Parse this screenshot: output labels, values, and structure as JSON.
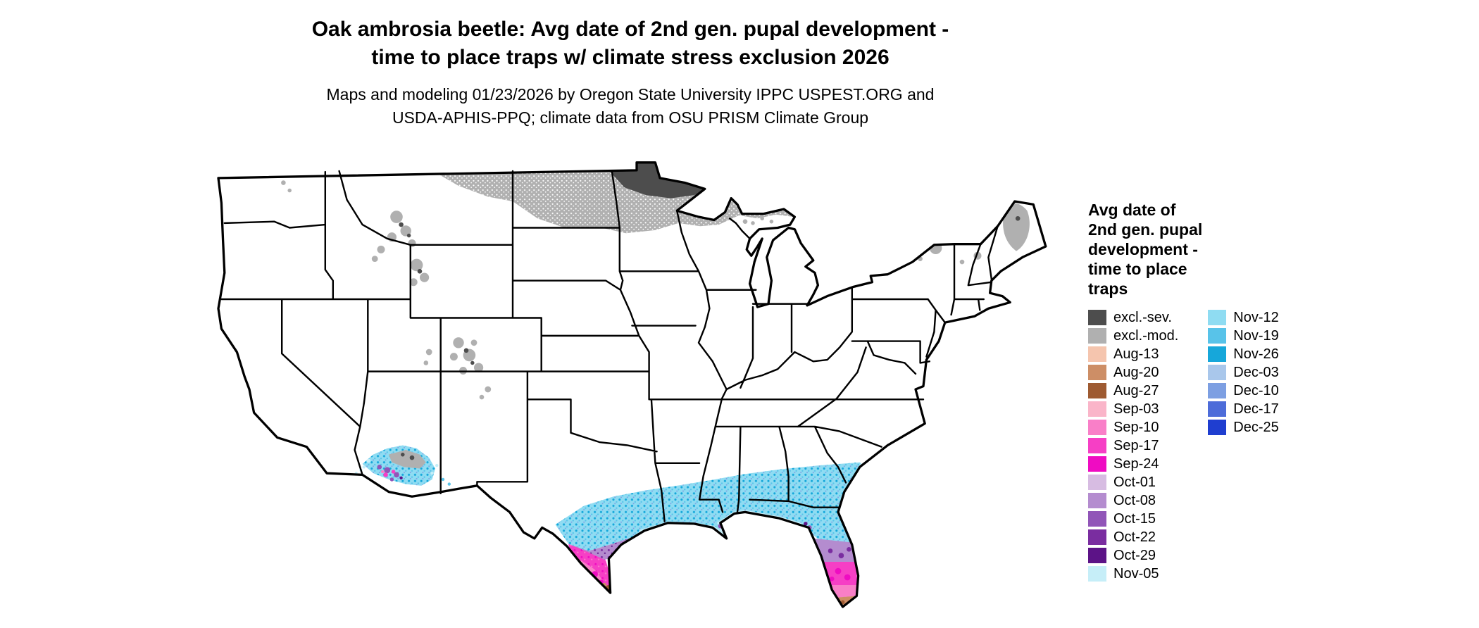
{
  "title": {
    "line1": "Oak ambrosia beetle: Avg date of 2nd gen. pupal development -",
    "line2": "time to place traps w/ climate stress exclusion 2026"
  },
  "subtitle": {
    "line1": "Maps and modeling 01/23/2026 by Oregon State University IPPC USPEST.ORG and",
    "line2": "USDA-APHIS-PPQ; climate data from OSU PRISM Climate Group"
  },
  "legend": {
    "title_lines": [
      "Avg date of",
      "2nd gen. pupal",
      "development -",
      "time to place",
      "traps"
    ],
    "columns": [
      {
        "entries": [
          {
            "label": "excl.-sev.",
            "color": "#4d4d4d"
          },
          {
            "label": "excl.-mod.",
            "color": "#b0b0b0"
          },
          {
            "label": "Aug-13",
            "color": "#f5c5ae"
          },
          {
            "label": "Aug-20",
            "color": "#cd8e66"
          },
          {
            "label": "Aug-27",
            "color": "#9e5a31"
          },
          {
            "label": "Sep-03",
            "color": "#fab5c9"
          },
          {
            "label": "Sep-10",
            "color": "#f97fc8"
          },
          {
            "label": "Sep-17",
            "color": "#f63fc5"
          },
          {
            "label": "Sep-24",
            "color": "#ef0cc2"
          },
          {
            "label": "Oct-01",
            "color": "#d7bce2"
          },
          {
            "label": "Oct-08",
            "color": "#b48ccf"
          },
          {
            "label": "Oct-15",
            "color": "#9155b8"
          },
          {
            "label": "Oct-22",
            "color": "#7a2da0"
          },
          {
            "label": "Oct-29",
            "color": "#5c1387"
          },
          {
            "label": "Nov-05",
            "color": "#c6eef8"
          }
        ]
      },
      {
        "entries": [
          {
            "label": "Nov-12",
            "color": "#8fdcf2"
          },
          {
            "label": "Nov-19",
            "color": "#58c3e9"
          },
          {
            "label": "Nov-26",
            "color": "#16a7da"
          },
          {
            "label": "Dec-03",
            "color": "#a9c7eb"
          },
          {
            "label": "Dec-10",
            "color": "#7d9fe2"
          },
          {
            "label": "Dec-17",
            "color": "#4d6cd9"
          },
          {
            "label": "Dec-25",
            "color": "#1f3ed0"
          }
        ]
      }
    ]
  },
  "map": {
    "outline_color": "#000000",
    "land_color": "#ffffff"
  }
}
